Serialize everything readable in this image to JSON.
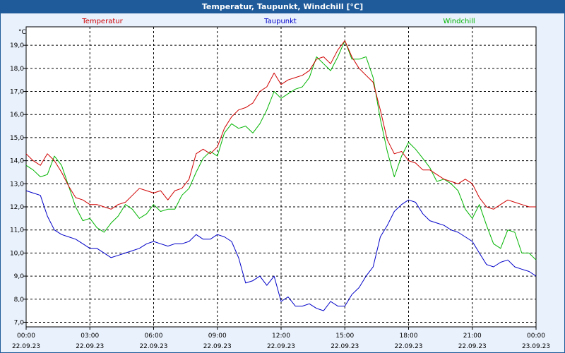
{
  "window": {
    "title": "Temperatur, Taupunkt, Windchill [°C]"
  },
  "colors": {
    "frame": "#1f5b9a",
    "background": "#e9f1fc",
    "temperatur": "#d00000",
    "taupunkt": "#0000c8",
    "windchill": "#00b400",
    "grid": "#000000"
  },
  "chart_data": {
    "type": "line",
    "title": "Temperatur, Taupunkt, Windchill [°C]",
    "ylabel": "°C",
    "ylim": [
      6.8,
      19.8
    ],
    "yticks": [
      "7,0",
      "8,0",
      "9,0",
      "10,0",
      "11,0",
      "12,0",
      "13,0",
      "14,0",
      "15,0",
      "16,0",
      "17,0",
      "18,0",
      "19,0"
    ],
    "xlim": [
      0,
      24
    ],
    "xticks": [
      {
        "time": "00:00",
        "date": "22.09.23"
      },
      {
        "time": "03:00",
        "date": "22.09.23"
      },
      {
        "time": "06:00",
        "date": "22.09.23"
      },
      {
        "time": "09:00",
        "date": "22.09.23"
      },
      {
        "time": "12:00",
        "date": "22.09.23"
      },
      {
        "time": "15:00",
        "date": "22.09.23"
      },
      {
        "time": "18:00",
        "date": "22.09.23"
      },
      {
        "time": "21:00",
        "date": "22.09.23"
      },
      {
        "time": "00:00",
        "date": "23.09.23"
      }
    ],
    "grid": true,
    "legend_position": "top",
    "series": [
      {
        "name": "Temperatur",
        "x": [
          0,
          0.33,
          0.67,
          1.0,
          1.33,
          1.67,
          2.0,
          2.33,
          2.67,
          3.0,
          3.33,
          3.67,
          4.0,
          4.33,
          4.67,
          5.0,
          5.33,
          5.67,
          6.0,
          6.33,
          6.67,
          7.0,
          7.33,
          7.67,
          8.0,
          8.33,
          8.67,
          9.0,
          9.33,
          9.67,
          10.0,
          10.33,
          10.67,
          11.0,
          11.33,
          11.67,
          12.0,
          12.33,
          12.67,
          13.0,
          13.33,
          13.67,
          14.0,
          14.33,
          14.67,
          15.0,
          15.33,
          15.67,
          16.0,
          16.33,
          16.67,
          17.0,
          17.33,
          17.67,
          18.0,
          18.33,
          18.67,
          19.0,
          19.33,
          19.67,
          20.0,
          20.33,
          20.67,
          21.0,
          21.33,
          21.67,
          22.0,
          22.33,
          22.67,
          23.0,
          23.33,
          23.67,
          24.0
        ],
        "values": [
          14.3,
          14.0,
          13.8,
          14.3,
          14.0,
          13.5,
          12.9,
          12.4,
          12.3,
          12.1,
          12.1,
          12.0,
          11.9,
          12.1,
          12.2,
          12.5,
          12.8,
          12.7,
          12.6,
          12.7,
          12.3,
          12.7,
          12.8,
          13.2,
          14.3,
          14.5,
          14.3,
          14.6,
          15.4,
          15.9,
          16.2,
          16.3,
          16.5,
          17.0,
          17.2,
          17.8,
          17.3,
          17.5,
          17.6,
          17.7,
          17.9,
          18.4,
          18.5,
          18.2,
          18.8,
          19.2,
          18.5,
          18.0,
          17.7,
          17.4,
          16.2,
          14.9,
          14.3,
          14.4,
          14.0,
          13.9,
          13.6,
          13.6,
          13.4,
          13.2,
          13.1,
          13.0,
          13.2,
          13.0,
          12.4,
          12.0,
          11.9,
          12.1,
          12.3,
          12.2,
          12.1,
          12.0,
          12.0
        ]
      },
      {
        "name": "Taupunkt",
        "x": [
          0,
          0.33,
          0.67,
          1.0,
          1.33,
          1.67,
          2.0,
          2.33,
          2.67,
          3.0,
          3.33,
          3.67,
          4.0,
          4.33,
          4.67,
          5.0,
          5.33,
          5.67,
          6.0,
          6.33,
          6.67,
          7.0,
          7.33,
          7.67,
          8.0,
          8.33,
          8.67,
          9.0,
          9.33,
          9.67,
          10.0,
          10.33,
          10.67,
          11.0,
          11.33,
          11.67,
          12.0,
          12.33,
          12.67,
          13.0,
          13.33,
          13.67,
          14.0,
          14.33,
          14.67,
          15.0,
          15.33,
          15.67,
          16.0,
          16.33,
          16.67,
          17.0,
          17.33,
          17.67,
          18.0,
          18.33,
          18.67,
          19.0,
          19.33,
          19.67,
          20.0,
          20.33,
          20.67,
          21.0,
          21.33,
          21.67,
          22.0,
          22.33,
          22.67,
          23.0,
          23.33,
          23.67,
          24.0
        ],
        "values": [
          12.7,
          12.6,
          12.5,
          11.6,
          11.0,
          10.8,
          10.7,
          10.6,
          10.4,
          10.2,
          10.2,
          10.0,
          9.8,
          9.9,
          10.0,
          10.1,
          10.2,
          10.4,
          10.5,
          10.4,
          10.3,
          10.4,
          10.4,
          10.5,
          10.8,
          10.6,
          10.6,
          10.8,
          10.7,
          10.5,
          9.8,
          8.7,
          8.8,
          9.0,
          8.6,
          9.0,
          7.9,
          8.1,
          7.7,
          7.7,
          7.8,
          7.6,
          7.5,
          7.9,
          7.7,
          7.7,
          8.2,
          8.5,
          9.0,
          9.4,
          10.7,
          11.2,
          11.8,
          12.1,
          12.3,
          12.2,
          11.7,
          11.4,
          11.3,
          11.2,
          11.0,
          10.9,
          10.7,
          10.5,
          10.0,
          9.5,
          9.4,
          9.6,
          9.7,
          9.4,
          9.3,
          9.2,
          9.0
        ]
      },
      {
        "name": "Windchill",
        "x": [
          0,
          0.33,
          0.67,
          1.0,
          1.33,
          1.67,
          2.0,
          2.33,
          2.67,
          3.0,
          3.33,
          3.67,
          4.0,
          4.33,
          4.67,
          5.0,
          5.33,
          5.67,
          6.0,
          6.33,
          6.67,
          7.0,
          7.33,
          7.67,
          8.0,
          8.33,
          8.67,
          9.0,
          9.33,
          9.67,
          10.0,
          10.33,
          10.67,
          11.0,
          11.33,
          11.67,
          12.0,
          12.33,
          12.67,
          13.0,
          13.33,
          13.67,
          14.0,
          14.33,
          14.67,
          15.0,
          15.33,
          15.67,
          16.0,
          16.33,
          16.67,
          17.0,
          17.33,
          17.67,
          18.0,
          18.33,
          18.67,
          19.0,
          19.33,
          19.67,
          20.0,
          20.33,
          20.67,
          21.0,
          21.33,
          21.67,
          22.0,
          22.33,
          22.67,
          23.0,
          23.33,
          23.67,
          24.0
        ],
        "values": [
          13.8,
          13.6,
          13.3,
          13.4,
          14.2,
          13.8,
          12.9,
          12.0,
          11.4,
          11.5,
          11.1,
          10.9,
          11.3,
          11.6,
          12.1,
          11.9,
          11.5,
          11.7,
          12.1,
          11.8,
          11.9,
          11.9,
          12.5,
          12.8,
          13.5,
          14.1,
          14.4,
          14.2,
          15.2,
          15.6,
          15.4,
          15.5,
          15.2,
          15.6,
          16.2,
          17.0,
          16.7,
          16.9,
          17.1,
          17.2,
          17.6,
          18.5,
          18.2,
          17.9,
          18.5,
          19.2,
          18.4,
          18.4,
          18.5,
          17.6,
          15.8,
          14.4,
          13.3,
          14.2,
          14.8,
          14.5,
          14.1,
          13.7,
          13.1,
          13.2,
          13.0,
          12.7,
          11.9,
          11.5,
          12.1,
          11.2,
          10.4,
          10.2,
          11.0,
          10.9,
          10.0,
          10.0,
          9.7
        ]
      }
    ]
  }
}
